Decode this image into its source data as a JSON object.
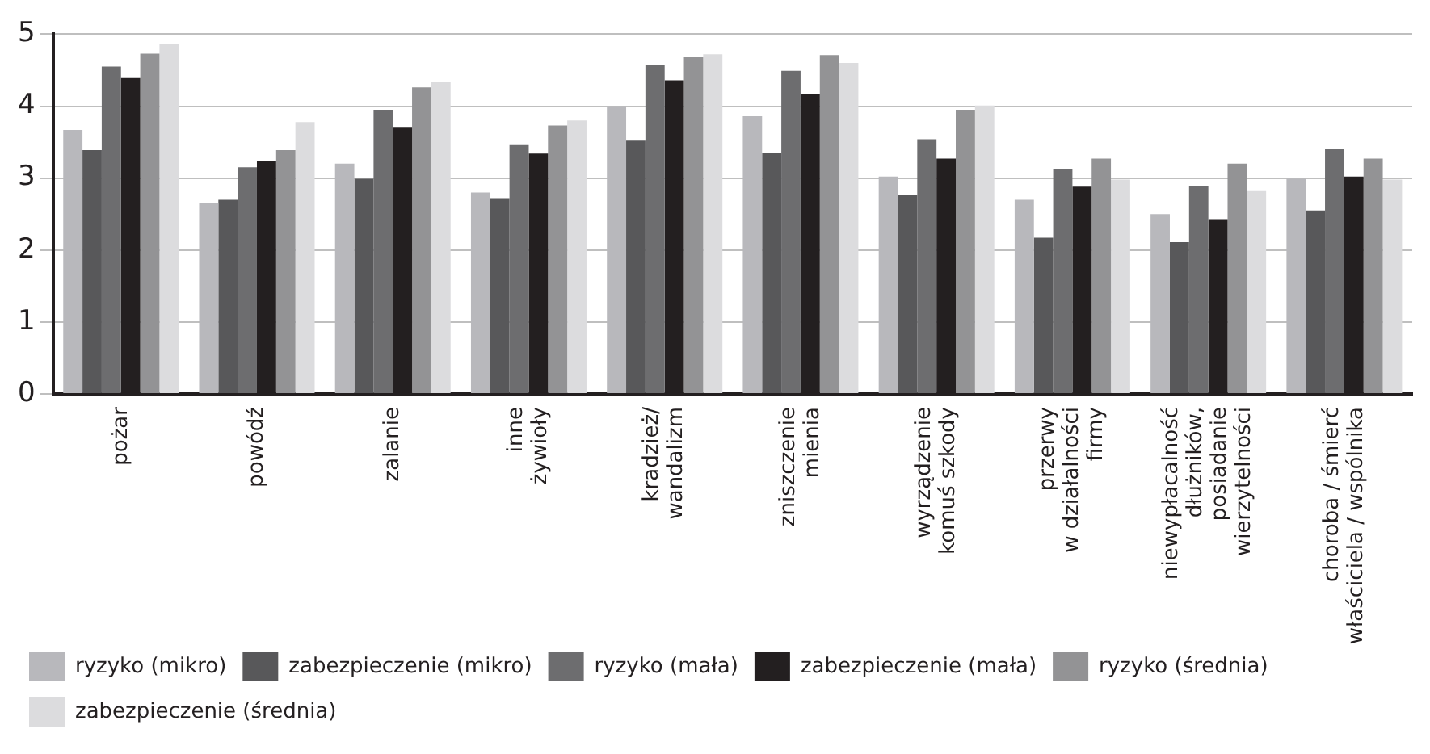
{
  "chart_data": {
    "type": "bar",
    "categories": [
      "pożar",
      "powódź",
      "zalanie",
      "inne\nżywioły",
      "kradzież/\nwandalizm",
      "zniszczenie\nmienia",
      "wyrządzenie\nkomuś szkody",
      "przerwy\nw działalności\nfirmy",
      "niewypłacalność\ndłużników,\nposiadanie\nwierzytelności",
      "choroba / śmierć\nwłaściciela / wspólnika"
    ],
    "series": [
      {
        "name": "ryzyko (mikro)",
        "color": "#b8b8bc",
        "values": [
          3.67,
          2.66,
          3.2,
          2.8,
          4.0,
          3.86,
          3.02,
          2.7,
          2.5,
          2.99
        ]
      },
      {
        "name": "zabezpieczenie (mikro)",
        "color": "#58585a",
        "values": [
          3.39,
          2.7,
          2.99,
          2.72,
          3.52,
          3.35,
          2.77,
          2.17,
          2.11,
          2.55
        ]
      },
      {
        "name": "ryzyko (mała)",
        "color": "#6d6d6f",
        "values": [
          4.55,
          3.15,
          3.95,
          3.47,
          4.57,
          4.49,
          3.54,
          3.13,
          2.89,
          3.41
        ]
      },
      {
        "name": "zabezpieczenie (mała)",
        "color": "#231f20",
        "values": [
          4.39,
          3.24,
          3.71,
          3.34,
          4.36,
          4.17,
          3.27,
          2.88,
          2.43,
          3.02
        ]
      },
      {
        "name": "ryzyko (średnia)",
        "color": "#939395",
        "values": [
          4.73,
          3.39,
          4.26,
          3.73,
          4.68,
          4.71,
          3.95,
          3.27,
          3.2,
          3.27
        ]
      },
      {
        "name": "zabezpieczenie (średnia)",
        "color": "#dcdcde",
        "values": [
          4.86,
          3.78,
          4.33,
          3.8,
          4.72,
          4.6,
          4.01,
          2.98,
          2.83,
          2.98
        ]
      }
    ],
    "ylim": [
      0,
      5
    ],
    "yticks": [
      0,
      1,
      2,
      3,
      4,
      5
    ],
    "grid": "y",
    "legend": "bottom left"
  }
}
